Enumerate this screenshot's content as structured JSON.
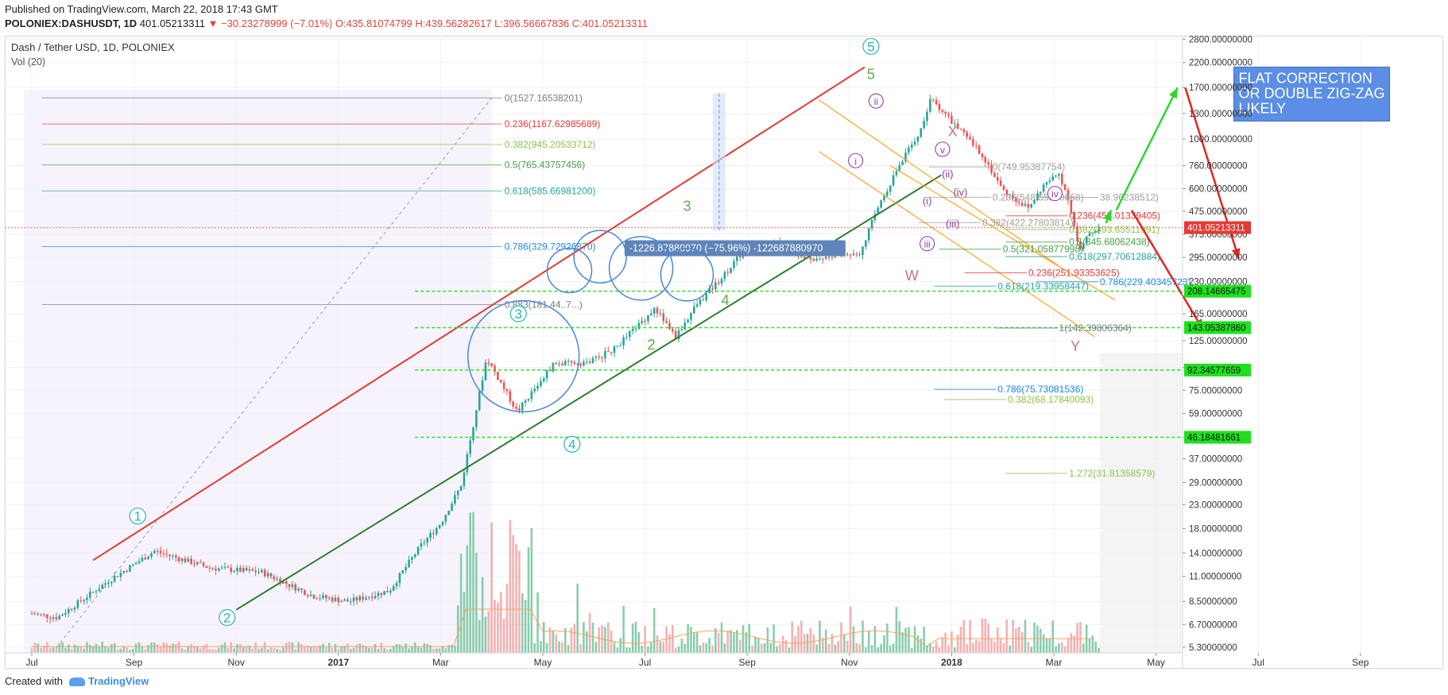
{
  "header": {
    "published": "Published on TradingView.com, March 22, 2018 17:43 GMT",
    "symbol": "POLONIEX:DASHUSDT, 1D",
    "last": "401.05213311",
    "change": "▼ −30.23278999 (−7.01%)",
    "ohlc": "O:435.81074799 H:439.56282617 L:396.56667836 C:401.05213311"
  },
  "legend": {
    "title": "Dash / Tether USD, 1D, POLONIEX",
    "volume": "Vol (20)"
  },
  "footer": {
    "created": "Created with",
    "brand": "TradingView"
  },
  "chart_data": {
    "type": "candlestick",
    "instrument": "Dash / Tether USD, 1D, POLONIEX",
    "price_scale": "log",
    "ylim": [
      5.0,
      2900
    ],
    "x_ticks": [
      "Jul",
      "Sep",
      "Nov",
      "2017",
      "Mar",
      "May",
      "Jul",
      "Sep",
      "Nov",
      "2018",
      "Mar",
      "May",
      "Jul",
      "Sep"
    ],
    "y_ticks": [
      "2800.00000000",
      "2200.00000000",
      "1700.00000000",
      "1300.00000000",
      "1000.00000000",
      "760.00000000",
      "600.00000000",
      "475.00000000",
      "375.00000000",
      "295.00000000",
      "230.00000000",
      "165.00000000",
      "125.00000000",
      "95.00000000",
      "75.00000000",
      "59.00000000",
      "46.00000000",
      "37.00000000",
      "29.00000000",
      "23.00000000",
      "18.00000000",
      "14.00000000",
      "11.00000000",
      "8.50000000",
      "6.70000000",
      "5.30000000"
    ],
    "y_tick_values": [
      2800,
      2200,
      1700,
      1300,
      1000,
      760,
      600,
      475,
      375,
      295,
      230,
      165,
      125,
      95,
      75,
      59,
      46,
      37,
      29,
      23,
      18,
      14,
      11,
      8.5,
      6.7,
      5.3
    ],
    "x_ticks_months": [
      0,
      2,
      4,
      6,
      8,
      10,
      12,
      14,
      16,
      18,
      20,
      22,
      24,
      26
    ],
    "price_path": {
      "month_index": [
        0,
        0.5,
        1.5,
        2.4,
        3.5,
        4.5,
        5.5,
        6.2,
        7.0,
        7.6,
        8.0,
        8.4,
        8.9,
        9.5,
        10.2,
        10.9,
        11.4,
        12.2,
        12.6,
        13.0,
        13.5,
        14.0,
        14.6,
        15.3,
        16.2,
        16.6,
        17.0,
        17.4,
        17.6,
        18.0,
        18.6,
        19.0,
        19.5,
        19.8,
        20.1,
        20.3,
        20.5,
        20.7,
        20.9
      ],
      "close": [
        7.5,
        7.2,
        10.5,
        14.3,
        12.0,
        11.5,
        9.0,
        8.5,
        9.5,
        15.0,
        19.0,
        28.0,
        105.0,
        60.0,
        98.0,
        100.0,
        115.0,
        175.0,
        130.0,
        180.0,
        240.0,
        330.0,
        340.0,
        290.0,
        310.0,
        520.0,
        780.0,
        1100.0,
        1520.0,
        1200.0,
        850.0,
        590.0,
        490.0,
        620.0,
        700.0,
        530.0,
        310.0,
        380.0,
        401.05
      ]
    },
    "volume_label": "Vol (20)",
    "horizontal_levels": [
      {
        "label": "208.14665475",
        "value": 208.14665475
      },
      {
        "label": "143.05387860",
        "value": 143.0538786
      },
      {
        "label": "92.34577659",
        "value": 92.34577659
      },
      {
        "label": "46.18481661",
        "value": 46.18481661
      }
    ],
    "last_price_tag": "401.05213311",
    "fib_retracement": [
      {
        "label": "0(1527.16538201)",
        "value": 1527.16538201,
        "color": "#787b86"
      },
      {
        "label": "0.236(1167.62985689)",
        "value": 1167.62985689,
        "color": "#e53935"
      },
      {
        "label": "0.382(945.20533712)",
        "value": 945.20533712,
        "color": "#8bc34a"
      },
      {
        "label": "0.5(765.43757456)",
        "value": 765.43757456,
        "color": "#43a047"
      },
      {
        "label": "0.618(585.66981200)",
        "value": 585.669812,
        "color": "#26a69a"
      },
      {
        "label": "0.786(329.72926870)",
        "value": 329.7292687,
        "color": "#1e88e5"
      },
      {
        "label": "0.883(181.44..7...)",
        "value": 181.44,
        "color": "#787b86"
      }
    ],
    "fib_right": [
      {
        "label": "0(749.95387754)",
        "value": 749.95387754,
        "color": "#9e9e9e"
      },
      {
        "label": "0.236(548.55530868)",
        "value": 548.55530868,
        "color": "#9e9e9e"
      },
      {
        "label": "38.96238512)",
        "value": 548.0,
        "color": "#9e9e9e"
      },
      {
        "label": "0.236(453.01339405)",
        "value": 453.01339405,
        "color": "#e53935"
      },
      {
        "label": "0.382(422.27803814)",
        "value": 422.27803814,
        "color": "#9e9e9e"
      },
      {
        "label": "0.382(393.65511991)",
        "value": 393.65511991,
        "color": "#8bc34a"
      },
      {
        "label": "0.5(345.68062438)",
        "value": 345.68062438,
        "color": "#43a047"
      },
      {
        "label": "0.5(321.05877998)",
        "value": 321.05877998,
        "color": "#43a047"
      },
      {
        "label": "0.618(297.70612884)",
        "value": 297.70612884,
        "color": "#26a69a"
      },
      {
        "label": "0.236(251.93353625)",
        "value": 251.93353625,
        "color": "#e53935"
      },
      {
        "label": "0.786(229.40345723)",
        "value": 229.40345723,
        "color": "#1e88e5"
      },
      {
        "label": "0.618(219.33958447)",
        "value": 219.33958447,
        "color": "#26a69a"
      },
      {
        "label": "1(142.39806364)",
        "value": 142.39806364,
        "color": "#787b86"
      },
      {
        "label": "0.786(75.73081536)",
        "value": 75.73081536,
        "color": "#1e88e5"
      },
      {
        "label": "0.382(68.17840093)",
        "value": 68.17840093,
        "color": "#8bc34a"
      },
      {
        "label": "1.272(31.81358579)",
        "value": 31.81358579,
        "color": "#8bc34a"
      }
    ],
    "measure_label": "-1226.87880970 (−75.96%) -122687880970",
    "wave_labels_circled": [
      "1",
      "2",
      "3",
      "4",
      "5",
      "3",
      "4"
    ],
    "wave_labels": [
      "3",
      "4",
      "2",
      "5",
      "W",
      "X",
      "Y"
    ],
    "subwave_labels": [
      "i",
      "ii",
      "iii",
      "iv",
      "v",
      "(i)",
      "(ii)",
      "(iii)",
      "(iv)"
    ],
    "annotation": "FLAT CORRECTION OR DOUBLE ZIG-ZAG LIKELY",
    "colors": {
      "up": "#26a69a",
      "down": "#ef5350",
      "red_channel": "#e53935",
      "green_channel": "#2e7d32",
      "circle": "#4a86d6",
      "wave": "#5cad45",
      "level": "#29e029",
      "annotation_bg": "#5b8ee4"
    }
  }
}
